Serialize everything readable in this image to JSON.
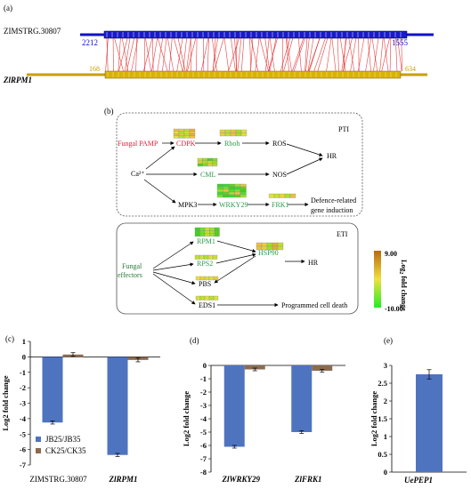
{
  "panel_a": {
    "label": "(a)",
    "top_gene": "ZIMSTRG.30807",
    "bottom_gene": "ZlRPM1",
    "top_left_num": "2212",
    "top_right_num": "1555",
    "bottom_left_num": "168",
    "bottom_right_num": "634",
    "colors": {
      "top": "#1010cc",
      "bottom": "#c8a000",
      "links": "#e02020"
    }
  },
  "panel_b": {
    "label": "(b)",
    "pti_label": "PTI",
    "eti_label": "ETI",
    "pti_nodes": {
      "fungal_pamp": "Fungal PAMP",
      "cdpk": "CDPK",
      "rboh": "Rboh",
      "ros": "ROS",
      "hr": "HR",
      "ca": "Ca²⁺",
      "cml": "CML",
      "nos": "NOS",
      "mpk3": "MPK3",
      "wrky29": "WRKY29",
      "frk1": "FRK1",
      "defence_1": "Defence-related",
      "defence_2": "gene induction"
    },
    "eti_nodes": {
      "fungal": "Fungal",
      "effectors": "effectors",
      "rpm1": "RPM1",
      "rps2": "RPS2",
      "pbs": "PBS",
      "eds1": "EDS1",
      "hsp90": "HSP90",
      "hr": "HR",
      "pcd": "Programmed cell death"
    },
    "legend": {
      "max": "9.00",
      "min": "-10.00",
      "title_prefix": "Log",
      "title_sub": "2",
      "title_suffix": " fold change"
    }
  },
  "chart_data": [
    {
      "type": "bar",
      "panel": "(c)",
      "categories": [
        "ZIMSTRG.30807",
        "ZlRPM1"
      ],
      "series": [
        {
          "name": "JB25/JB35",
          "values": [
            -4.25,
            -6.35
          ],
          "errors": [
            0.1,
            0.1
          ],
          "color": "#4f74bf"
        },
        {
          "name": "CK25/CK35",
          "values": [
            0.15,
            -0.2
          ],
          "errors": [
            0.12,
            0.12
          ],
          "color": "#8b6b50"
        }
      ],
      "ylabel": "Log2 fold change",
      "ylim": [
        -7,
        1
      ],
      "yticks": [
        "-7",
        "-6",
        "-5",
        "-4",
        "-3",
        "-2",
        "-1",
        "0",
        "1"
      ],
      "legend": "bottom-left"
    },
    {
      "type": "bar",
      "panel": "(d)",
      "categories": [
        "ZlWRKY29",
        "ZlFRK1"
      ],
      "series": [
        {
          "name": "JB25/JB35",
          "values": [
            -6.1,
            -5.0
          ],
          "errors": [
            0.1,
            0.1
          ],
          "color": "#4f74bf"
        },
        {
          "name": "CK25/CK35",
          "values": [
            -0.3,
            -0.4
          ],
          "errors": [
            0.1,
            0.1
          ],
          "color": "#8b6b50"
        }
      ],
      "ylabel": "Log2 fold change",
      "ylim": [
        -8,
        0
      ],
      "yticks": [
        "-8",
        "-7",
        "-6",
        "-5",
        "-4",
        "-3",
        "-2",
        "-1",
        "0"
      ]
    },
    {
      "type": "bar",
      "panel": "(e)",
      "categories": [
        "UePEP1"
      ],
      "series": [
        {
          "name": "JB25/JB35",
          "values": [
            2.75
          ],
          "errors": [
            0.13
          ],
          "color": "#4f74bf"
        }
      ],
      "ylabel": "Log2 fold change",
      "ylim": [
        0,
        3
      ],
      "yticks": [
        "0",
        "0.5",
        "1",
        "1.5",
        "2",
        "2.5",
        "3"
      ]
    }
  ]
}
